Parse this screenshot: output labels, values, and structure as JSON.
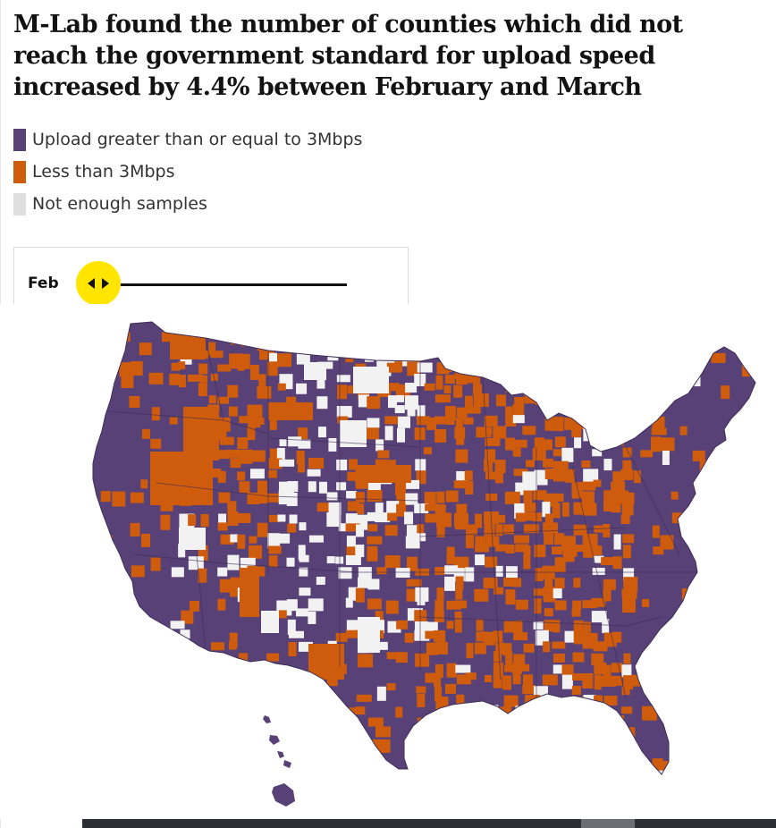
{
  "title": "M-Lab found the number of counties which did not reach the government standard for upload speed increased by 4.4% between February and March",
  "legend": [
    {
      "label": "Upload greater than or equal to 3Mbps",
      "color": "#574176"
    },
    {
      "label": "Less than 3Mbps",
      "color": "#cf5c0c"
    },
    {
      "label": "Not enough samples",
      "color": "#dedede"
    }
  ],
  "slider": {
    "month_label": "Feb",
    "handle_icon": "left-right-arrows-icon",
    "handle_color": "#ffe500"
  },
  "map": {
    "region": "United States counties",
    "colors": {
      "meets_standard": "#574176",
      "below_standard": "#cf5c0c",
      "no_data": "#f2f2f2",
      "border": "#3d2d57"
    }
  }
}
